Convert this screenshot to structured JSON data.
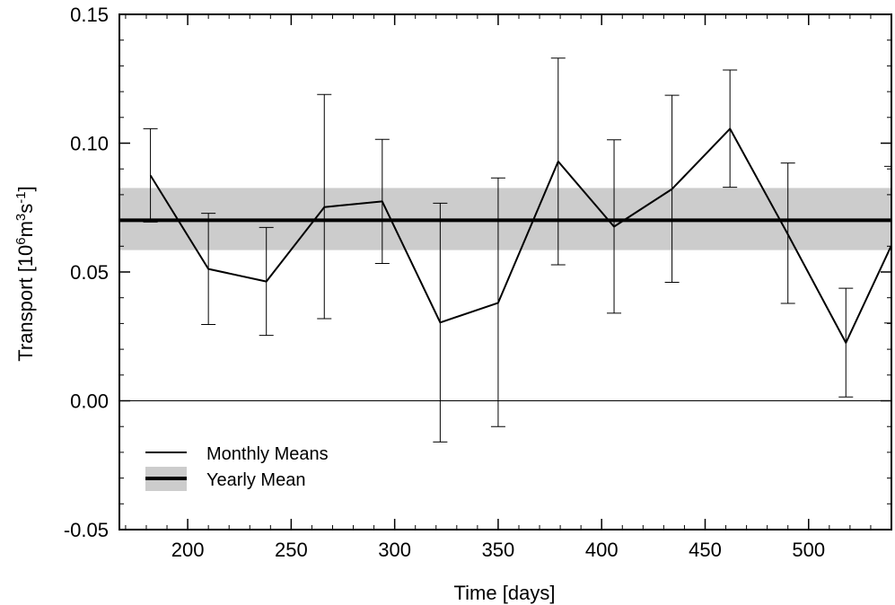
{
  "chart_data": {
    "type": "line",
    "xlabel": "Time [days]",
    "ylabel": {
      "prefix": "Transport [10",
      "sup1": "6",
      "mid1": "m",
      "sup2": "3",
      "mid2": "s",
      "sup3": "-1",
      "suffix": "]"
    },
    "xlim": [
      167,
      540
    ],
    "ylim": [
      -0.05,
      0.15
    ],
    "x_ticks": [
      200,
      250,
      300,
      350,
      400,
      450,
      500
    ],
    "x_tick_labels": [
      "200",
      "250",
      "300",
      "350",
      "400",
      "450",
      "500"
    ],
    "y_ticks": [
      -0.05,
      0.0,
      0.05,
      0.1,
      0.15
    ],
    "y_tick_labels": [
      "-0.05",
      "0.00",
      "0.05",
      "0.10",
      "0.15"
    ],
    "zero_line": true,
    "grid": false,
    "legend_position": "bottom-left",
    "yearly_mean": {
      "name": "Yearly Mean",
      "value": 0.0701,
      "band": [
        0.0585,
        0.0826
      ],
      "band_color": "#cccccc",
      "line_color": "#000000"
    },
    "series": [
      {
        "name": "Monthly Means",
        "color": "#000000",
        "x": [
          182,
          210,
          238,
          266,
          294,
          322,
          350,
          379,
          406,
          434,
          462,
          490,
          518,
          540
        ],
        "y": [
          0.0875,
          0.0512,
          0.0463,
          0.0752,
          0.0774,
          0.0304,
          0.038,
          0.0929,
          0.0676,
          0.0822,
          0.1056,
          0.0646,
          0.0225,
          0.0603
        ],
        "err_low": [
          0.0694,
          0.0296,
          0.0254,
          0.0319,
          0.0533,
          -0.016,
          -0.01,
          0.0528,
          0.034,
          0.046,
          0.0829,
          0.0378,
          0.0015,
          0.0302
        ],
        "err_high": [
          0.1056,
          0.0728,
          0.0673,
          0.1189,
          0.1015,
          0.0767,
          0.0865,
          0.133,
          0.1013,
          0.1186,
          0.1284,
          0.0923,
          0.0437,
          0.091
        ]
      }
    ]
  }
}
